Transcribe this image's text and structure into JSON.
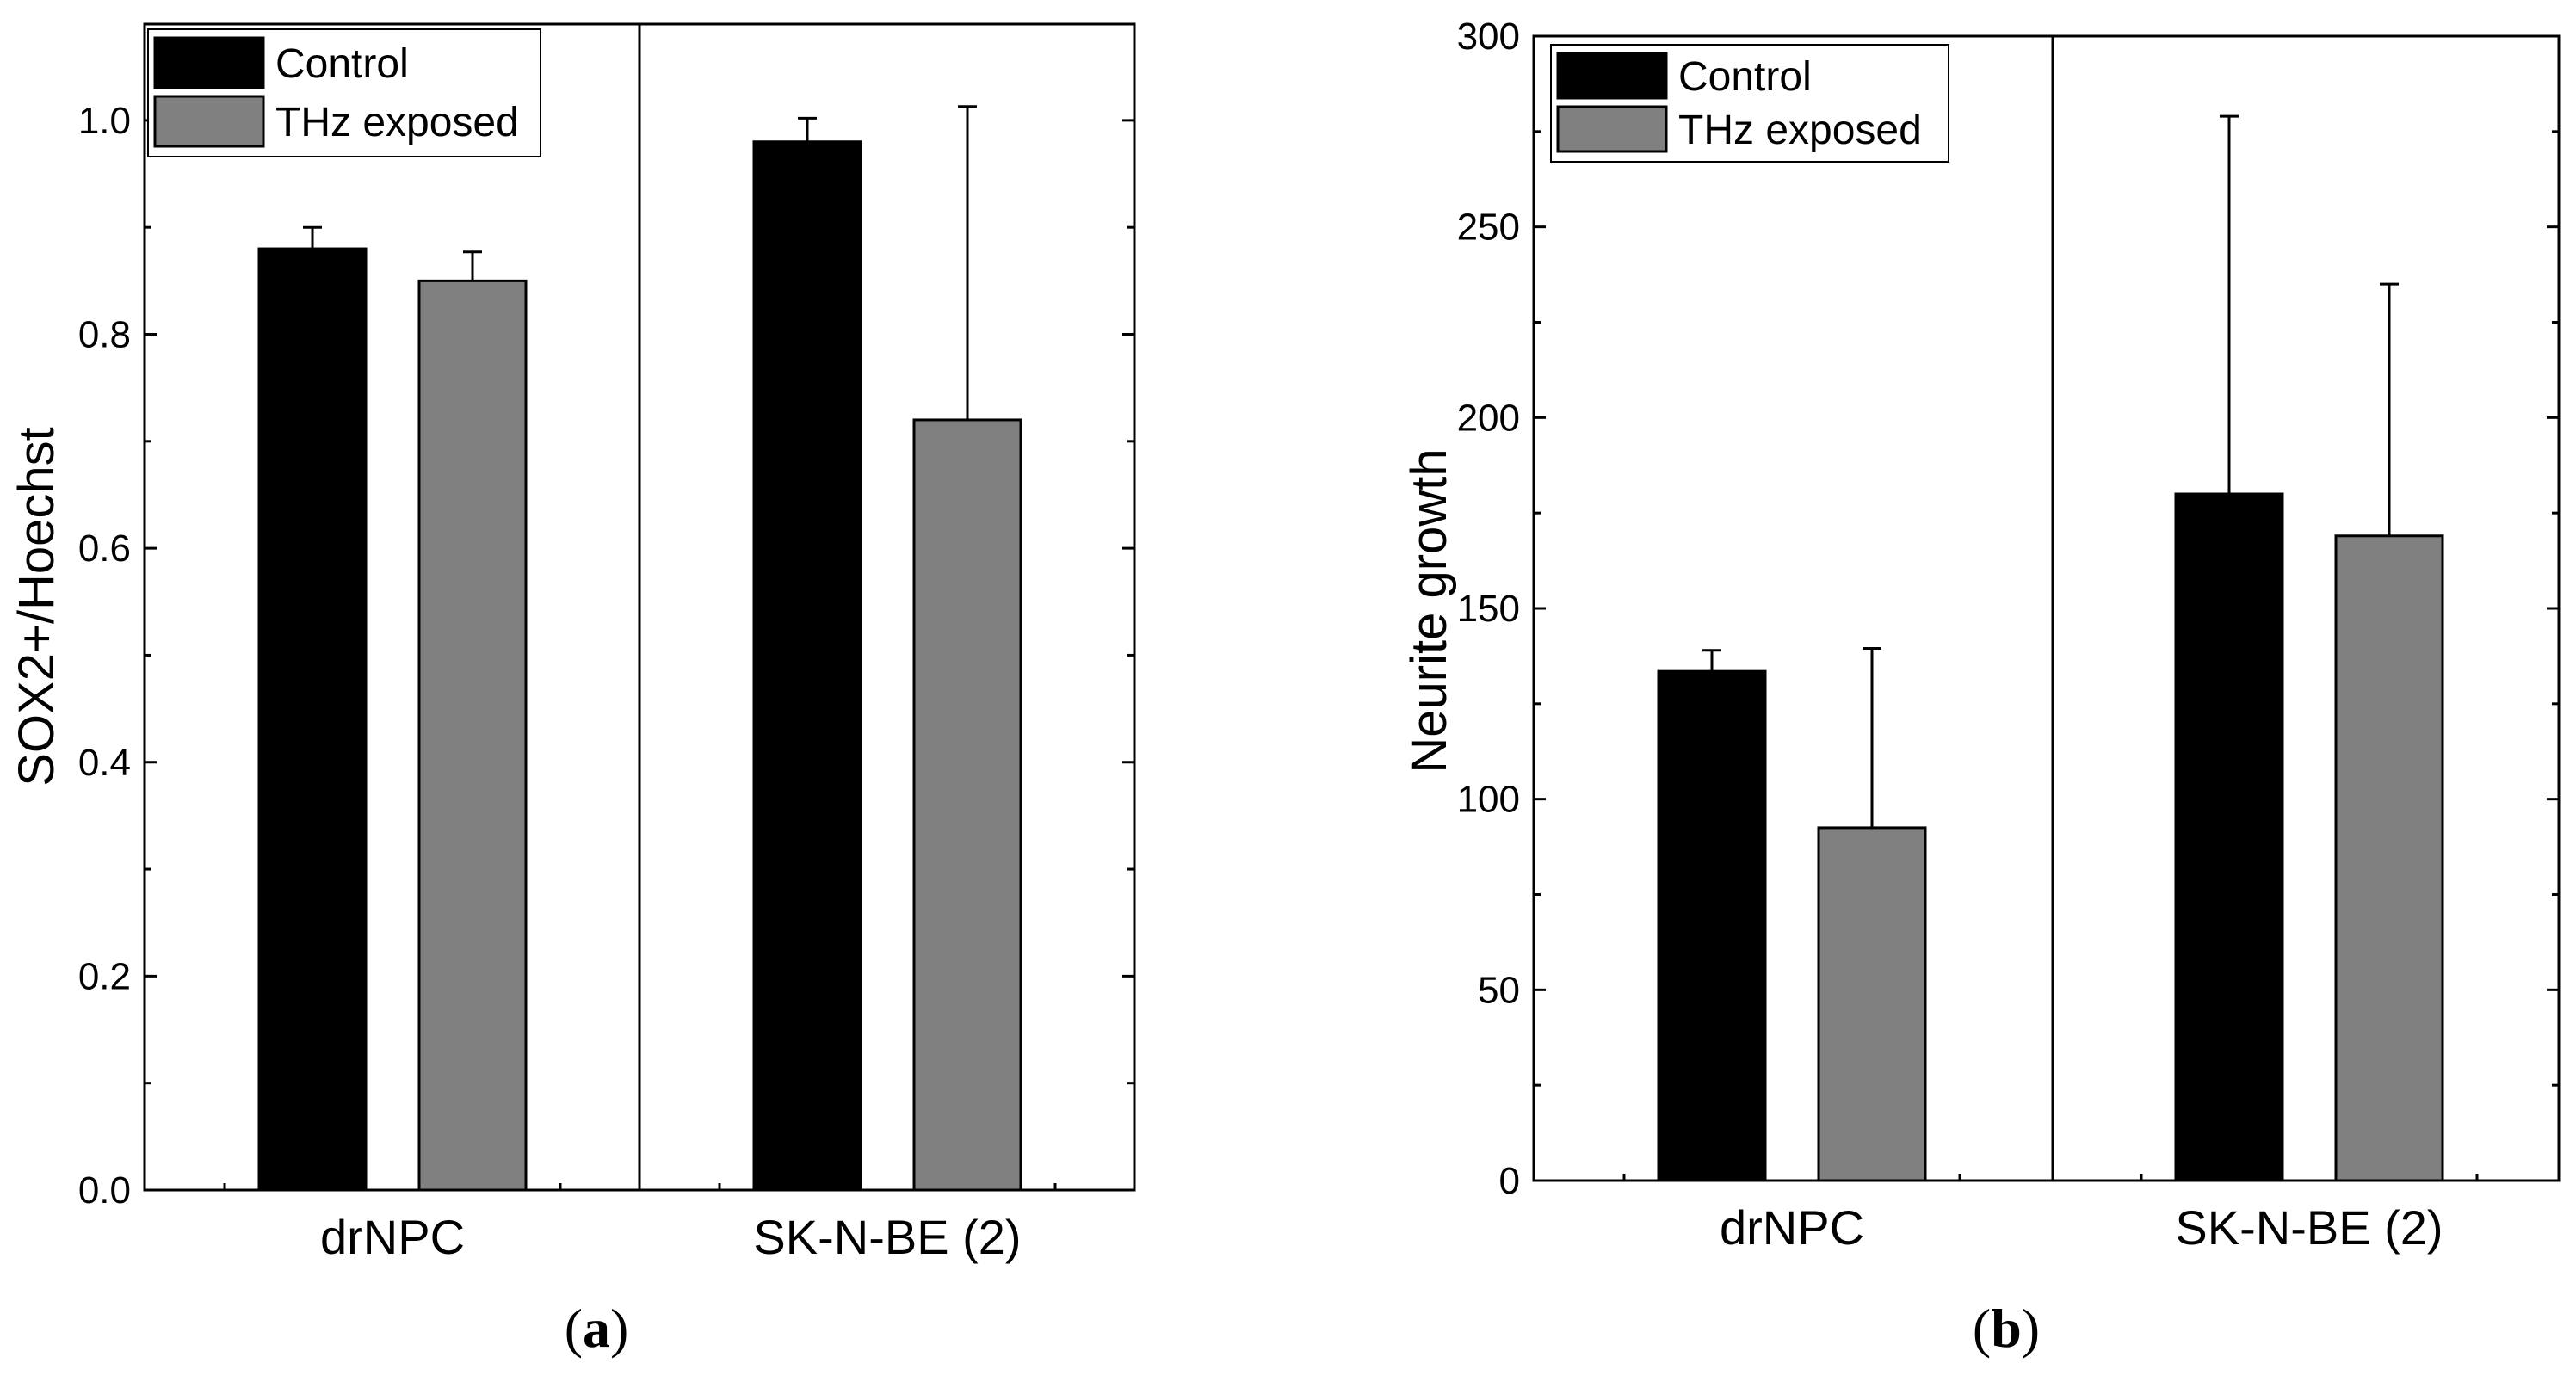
{
  "chart_data": [
    {
      "type": "bar",
      "panel_label": "a",
      "title": "",
      "xlabel": "",
      "ylabel": "SOX2+/Hoechst",
      "categories": [
        "drNPC",
        "SK-N-BE (2)"
      ],
      "series": [
        {
          "name": "Control",
          "color": "#000000",
          "values": [
            0.88,
            0.98
          ],
          "errors": [
            0.02,
            0.022
          ]
        },
        {
          "name": "THz exposed",
          "color": "#808080",
          "values": [
            0.85,
            0.72
          ],
          "errors": [
            0.027,
            0.293
          ]
        }
      ],
      "ylim": [
        0,
        1.09
      ],
      "yticks": [
        0.0,
        0.2,
        0.4,
        0.6,
        0.8,
        1.0
      ],
      "ytick_labels": [
        "0.0",
        "0.2",
        "0.4",
        "0.6",
        "0.8",
        "1.0"
      ],
      "legend": "top-left",
      "grid": false
    },
    {
      "type": "bar",
      "panel_label": "b",
      "title": "",
      "xlabel": "",
      "ylabel": "Neurite growth",
      "categories": [
        "drNPC",
        "SK-N-BE (2)"
      ],
      "series": [
        {
          "name": "Control",
          "color": "#000000",
          "values": [
            133.5,
            180
          ],
          "errors": [
            5.5,
            99
          ]
        },
        {
          "name": "THz exposed",
          "color": "#808080",
          "values": [
            92.5,
            169
          ],
          "errors": [
            47,
            66
          ]
        }
      ],
      "ylim": [
        0,
        300
      ],
      "yticks": [
        0,
        50,
        100,
        150,
        200,
        250,
        300
      ],
      "ytick_labels": [
        "0",
        "50",
        "100",
        "150",
        "200",
        "250",
        "300"
      ],
      "legend": "top-left",
      "grid": false
    }
  ]
}
